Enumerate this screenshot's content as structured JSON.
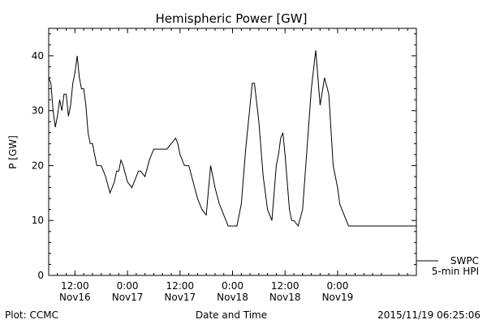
{
  "chart_data": {
    "type": "line",
    "title": "Hemispheric Power [GW]",
    "xlabel": "Date and Time",
    "ylabel": "P [GW]",
    "ylim": [
      0,
      45
    ],
    "yticks": [
      0,
      10,
      20,
      30,
      40
    ],
    "xlim_hours": [
      0,
      84
    ],
    "xtick_labels": [
      {
        "time": "12:00",
        "date": "Nov16"
      },
      {
        "time": "0:00",
        "date": "Nov17"
      },
      {
        "time": "12:00",
        "date": "Nov17"
      },
      {
        "time": "0:00",
        "date": "Nov18"
      },
      {
        "time": "12:00",
        "date": "Nov18"
      },
      {
        "time": "0:00",
        "date": "Nov19"
      }
    ],
    "grid": false,
    "legend_position": "bottom-right",
    "series": [
      {
        "name": "SWPC 5-min HPI",
        "x_hours": [
          0,
          0.5,
          1,
          1.5,
          2,
          2.5,
          3,
          3.5,
          4,
          4.5,
          5,
          5.5,
          6,
          6.5,
          7,
          7.5,
          8,
          8.5,
          9,
          9.5,
          10,
          10.5,
          11,
          11.5,
          12,
          12.5,
          13,
          14,
          15,
          15.5,
          16,
          16.5,
          17,
          18,
          19,
          20,
          20.5,
          21,
          22,
          23,
          24,
          24.5,
          25,
          25.5,
          26,
          27,
          28,
          29,
          29.5,
          30,
          31,
          32,
          33,
          34,
          35,
          36,
          37,
          38,
          39,
          40,
          41,
          42,
          43,
          44,
          45,
          46,
          46.5,
          47,
          48,
          49,
          50,
          51,
          52,
          52.5,
          53,
          53.5,
          54,
          55,
          55.5,
          56,
          57,
          58,
          59,
          60,
          61,
          62,
          63,
          64,
          65,
          66,
          66.5,
          67,
          68,
          68.5,
          69,
          70,
          71,
          72,
          73,
          74,
          74.5,
          75,
          76,
          76.5,
          77,
          78,
          78.5,
          79,
          80,
          81,
          82,
          83,
          84
        ],
        "y": [
          36,
          35,
          30,
          27,
          29,
          32,
          30,
          33,
          33,
          29,
          31,
          35,
          37,
          40,
          36,
          34,
          34,
          31,
          26,
          24,
          24,
          22,
          20,
          20,
          20,
          19,
          18,
          15,
          17,
          19,
          19,
          21,
          20,
          17,
          16,
          18,
          19,
          19,
          18,
          21,
          23,
          23,
          23,
          23,
          23,
          23,
          24,
          25,
          24,
          22,
          20,
          20,
          17,
          14,
          12,
          11,
          20,
          16,
          13,
          11,
          9,
          9,
          9,
          13,
          23,
          31,
          35,
          35,
          28,
          18,
          12,
          10,
          20,
          22,
          25,
          26,
          22,
          12,
          10,
          10,
          9,
          12,
          23,
          34,
          41,
          31,
          36,
          33,
          20,
          16,
          13,
          12,
          10,
          9,
          9,
          9,
          9,
          9,
          9,
          9,
          9,
          9,
          9,
          9,
          9,
          9,
          9,
          9,
          9,
          9,
          9,
          9,
          9
        ]
      }
    ],
    "legend": {
      "line1": "SWPC",
      "line2": "5-min HPI"
    }
  },
  "footer": {
    "left": "Plot: CCMC",
    "right": "2015/11/19 06:25:06"
  }
}
